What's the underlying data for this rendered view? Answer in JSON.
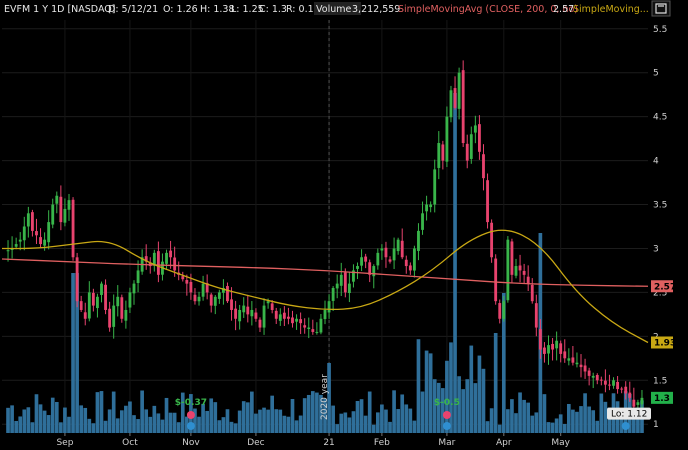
{
  "header": {
    "symbol_line": "EVFM 1 Y 1D [NASDAQ]",
    "date": "D: 5/12/21",
    "open": "O: 1.26",
    "high": "H: 1.38",
    "low": "L: 1.25",
    "close": "C: 1.3",
    "range": "R: 0.13",
    "volume_label": "Volume",
    "volume_value": "3,212,559",
    "sma200_label": "SimpleMovingAvg (CLOSE, 200, 0, no)",
    "sma200_value": "2.57",
    "sma50_label": "SimpleMoving..."
  },
  "colors": {
    "background": "#000000",
    "up": "#39b54a",
    "down": "#e8436e",
    "volume": "#2f6f9a",
    "sma200": "#e06060",
    "sma50": "#c9a814",
    "last_price_bg": "#22b04a"
  },
  "chart_data": {
    "type": "candlestick",
    "ylim": [
      0.9,
      5.6
    ],
    "y_ticks": [
      "5.5",
      "5",
      "4.5",
      "4",
      "3.5",
      "3",
      "2.5",
      "2",
      "1.5",
      "1"
    ],
    "x_ticks": [
      "Sep",
      "Oct",
      "Nov",
      "Dec",
      "21",
      "Feb",
      "Mar",
      "Apr",
      "May"
    ],
    "year_divider_label": "2020 year",
    "price_tags": {
      "sma200": "2.57",
      "sma50": "1.93",
      "last": "1.3",
      "low": "Lo: 1.12"
    },
    "events": [
      {
        "label": "$-0.37",
        "icon": "earnings-icon"
      },
      {
        "label": "$-0.5",
        "icon": "earnings-icon"
      }
    ],
    "closes": [
      2.98,
      3.0,
      3.05,
      3.1,
      3.25,
      3.4,
      3.2,
      3.15,
      3.05,
      3.1,
      3.3,
      3.5,
      3.6,
      3.3,
      3.45,
      3.55,
      2.9,
      2.4,
      2.3,
      2.2,
      2.5,
      2.35,
      2.45,
      2.6,
      2.3,
      2.1,
      2.35,
      2.45,
      2.2,
      2.3,
      2.5,
      2.6,
      2.75,
      2.9,
      2.85,
      2.8,
      2.95,
      2.7,
      2.85,
      2.95,
      2.9,
      2.75,
      2.7,
      2.65,
      2.6,
      2.5,
      2.4,
      2.45,
      2.6,
      2.5,
      2.35,
      2.45,
      2.5,
      2.55,
      2.4,
      2.3,
      2.2,
      2.3,
      2.35,
      2.25,
      2.3,
      2.2,
      2.1,
      2.35,
      2.4,
      2.3,
      2.2,
      2.25,
      2.2,
      2.2,
      2.15,
      2.2,
      2.15,
      2.1,
      2.1,
      2.05,
      2.05,
      2.2,
      2.3,
      2.4,
      2.55,
      2.6,
      2.7,
      2.5,
      2.6,
      2.75,
      2.8,
      2.9,
      2.85,
      2.7,
      2.8,
      2.95,
      3.0,
      2.9,
      2.85,
      3.0,
      3.1,
      2.9,
      2.8,
      2.75,
      3.0,
      3.2,
      3.4,
      3.5,
      3.5,
      3.9,
      4.2,
      4.0,
      4.5,
      4.8,
      4.6,
      5.0,
      4.2,
      4.0,
      4.3,
      4.4,
      4.1,
      3.8,
      3.3,
      2.9,
      2.4,
      2.2,
      2.4,
      3.1,
      2.7,
      2.8,
      2.75,
      2.7,
      2.6,
      2.4,
      2.1,
      1.85,
      1.8,
      1.9,
      1.85,
      1.95,
      1.8,
      1.75,
      1.75,
      1.7,
      1.7,
      1.65,
      1.6,
      1.55,
      1.55,
      1.5,
      1.5,
      1.45,
      1.45,
      1.5,
      1.4,
      1.4,
      1.35,
      1.3,
      1.2,
      1.25,
      1.3
    ],
    "sma200": [
      2.88,
      2.85,
      2.82,
      2.8,
      2.78,
      2.75,
      2.7,
      2.65,
      2.6,
      2.58,
      2.57
    ],
    "sma50": [
      3.0,
      3.0,
      3.05,
      3.1,
      2.85,
      2.7,
      2.55,
      2.45,
      2.35,
      2.3,
      2.32,
      2.5,
      2.75,
      3.1,
      3.25,
      3.05,
      2.5,
      2.15,
      1.93
    ]
  }
}
